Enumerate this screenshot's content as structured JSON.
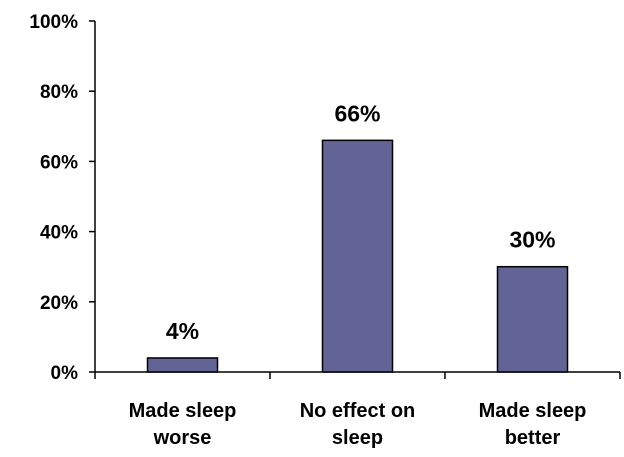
{
  "chart_data": {
    "type": "bar",
    "categories": [
      [
        "Made sleep",
        "worse"
      ],
      [
        "No effect on",
        "sleep"
      ],
      [
        "Made sleep",
        "better"
      ]
    ],
    "values": [
      4,
      66,
      30
    ],
    "data_labels": [
      "4%",
      "66%",
      "30%"
    ],
    "ylim": [
      0,
      100
    ],
    "y_ticks": [
      0,
      20,
      40,
      60,
      80,
      100
    ],
    "y_tick_labels": [
      "0%",
      "20%",
      "40%",
      "60%",
      "80%",
      "100%"
    ],
    "title": "",
    "xlabel": "",
    "ylabel": "",
    "grid": false,
    "bar_color": "#636496",
    "bar_edge_color": "#000000"
  }
}
